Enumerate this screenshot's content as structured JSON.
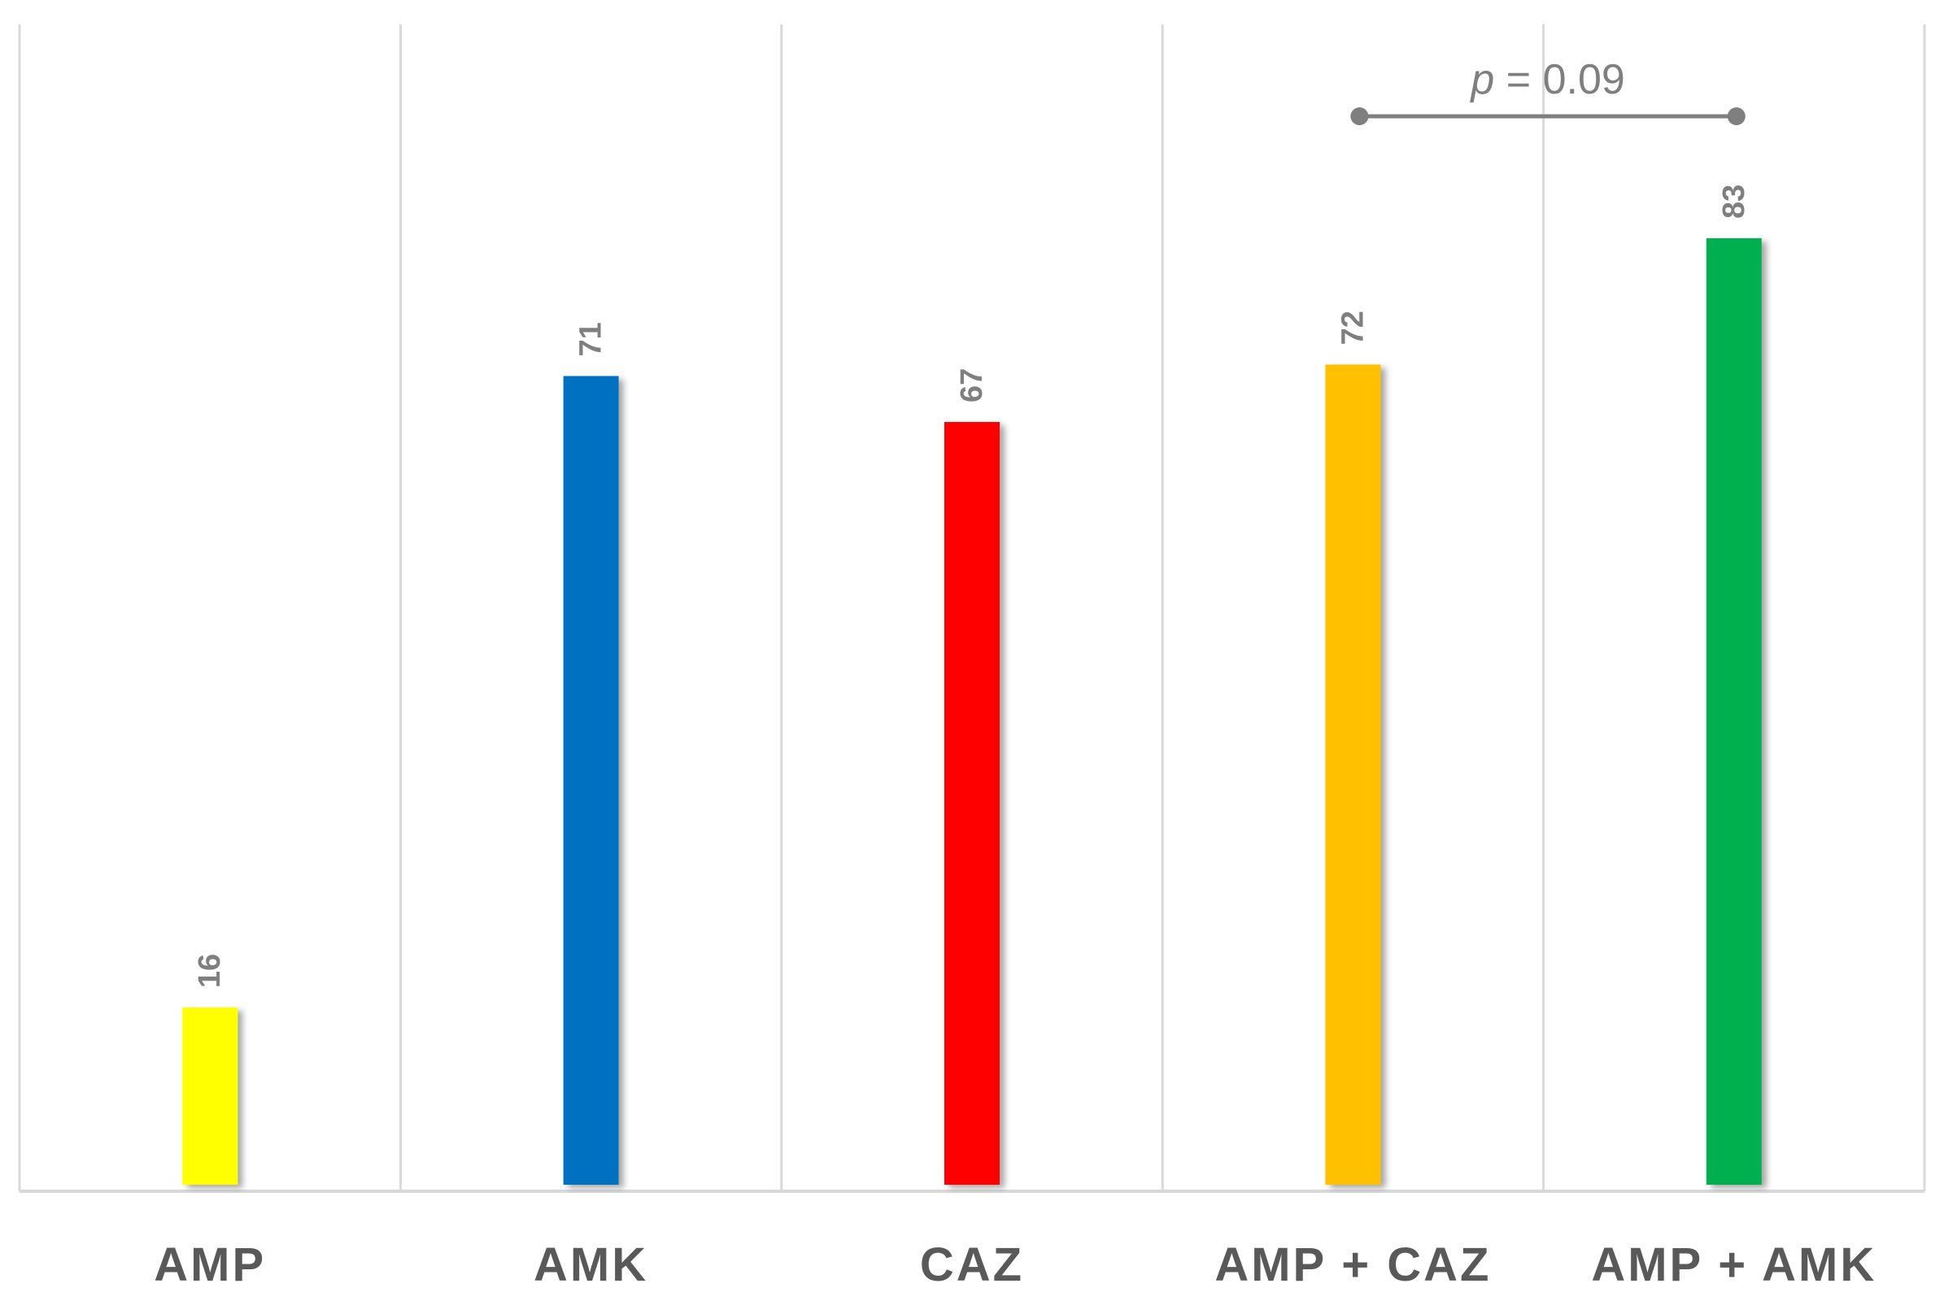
{
  "chart_data": {
    "type": "bar",
    "categories": [
      "AMP",
      "AMK",
      "CAZ",
      "AMP + CAZ",
      "AMP + AMK"
    ],
    "values": [
      16,
      71,
      67,
      72,
      83
    ],
    "data_labels": [
      "16",
      "71",
      "67",
      "72",
      "83"
    ],
    "colors": [
      "#ffff00",
      "#0070c0",
      "#ff0000",
      "#ffc000",
      "#00b050"
    ],
    "ylim": [
      0,
      100
    ],
    "grid": true,
    "legend": "none",
    "annotation": {
      "from_category": "AMP + CAZ",
      "to_category": "AMP + AMK",
      "p_symbol": "p",
      "p_text": " = 0.09"
    }
  }
}
